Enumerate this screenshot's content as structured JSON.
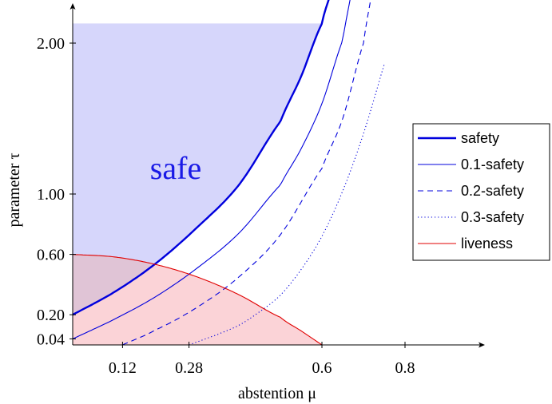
{
  "chart_data": {
    "type": "line",
    "xlabel": "abstention μ",
    "ylabel": "parameter τ",
    "xlim": [
      0,
      1
    ],
    "ylim": [
      0,
      2.35
    ],
    "x_ticks": [
      0.12,
      0.28,
      0.6,
      0.8
    ],
    "x_tick_labels": [
      "0.12",
      "0.28",
      "0.6",
      "0.8"
    ],
    "y_ticks": [
      0.04,
      0.2,
      0.6,
      1.0,
      2.0
    ],
    "y_tick_labels": [
      "0.04",
      "0.20",
      "0.60",
      "1.00",
      "2.00"
    ],
    "annotation": "safe",
    "legend_position": "right",
    "colors": {
      "safety": "#0000dd",
      "liveness": "#e00000",
      "safe_fill": "#d6d6fb",
      "liveness_fill": "#fbd3d7",
      "overlap_fill": "#e0c4d6"
    },
    "series": [
      {
        "name": "safety",
        "style": "thick",
        "x": [
          0.0,
          0.1,
          0.2,
          0.3,
          0.4,
          0.5,
          0.55,
          0.6,
          0.62
        ],
        "y": [
          0.2,
          0.35,
          0.54,
          0.78,
          1.06,
          1.48,
          1.78,
          2.13,
          2.32
        ]
      },
      {
        "name": "0.1-safety",
        "style": "thin",
        "x": [
          0.0,
          0.1,
          0.2,
          0.3,
          0.4,
          0.5,
          0.55,
          0.6,
          0.65,
          0.67
        ],
        "y": [
          0.04,
          0.17,
          0.32,
          0.51,
          0.74,
          1.06,
          1.3,
          1.6,
          2.02,
          2.32
        ]
      },
      {
        "name": "0.2-safety",
        "style": "dashed",
        "x": [
          0.12,
          0.2,
          0.3,
          0.4,
          0.5,
          0.6,
          0.65,
          0.7,
          0.72
        ],
        "y": [
          0.0,
          0.1,
          0.25,
          0.45,
          0.73,
          1.17,
          1.5,
          2.0,
          2.33
        ]
      },
      {
        "name": "0.3-safety",
        "style": "dotted",
        "x": [
          0.28,
          0.35,
          0.4,
          0.45,
          0.5,
          0.55,
          0.6,
          0.65,
          0.7,
          0.75
        ],
        "y": [
          0.0,
          0.07,
          0.13,
          0.22,
          0.33,
          0.5,
          0.72,
          1.02,
          1.4,
          1.86
        ]
      },
      {
        "name": "liveness",
        "style": "thin",
        "x": [
          0.0,
          0.1,
          0.2,
          0.3,
          0.4,
          0.5,
          0.55,
          0.6
        ],
        "y": [
          0.6,
          0.583,
          0.533,
          0.45,
          0.333,
          0.183,
          0.093,
          0.0
        ]
      }
    ],
    "regions": [
      {
        "label": "safe",
        "description": "area above safety curve, τ up to 2.13",
        "y_max": 2.13
      }
    ]
  }
}
